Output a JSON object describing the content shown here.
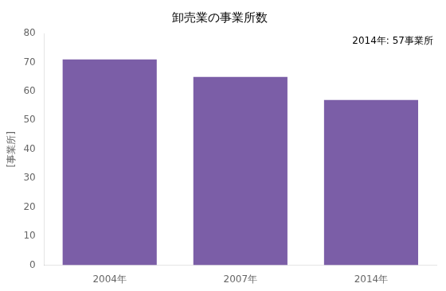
{
  "chart_data": {
    "type": "bar",
    "title": "卸売業の事業所数",
    "ylabel": "[事業所]",
    "annotation": "2014年: 57事業所",
    "categories": [
      "2004年",
      "2007年",
      "2014年"
    ],
    "values": [
      71,
      65,
      57
    ],
    "color": "#7B5EA7",
    "ylim": [
      0,
      80
    ],
    "yticks": [
      0,
      10,
      20,
      30,
      40,
      50,
      60,
      70,
      80
    ],
    "grid": false
  }
}
